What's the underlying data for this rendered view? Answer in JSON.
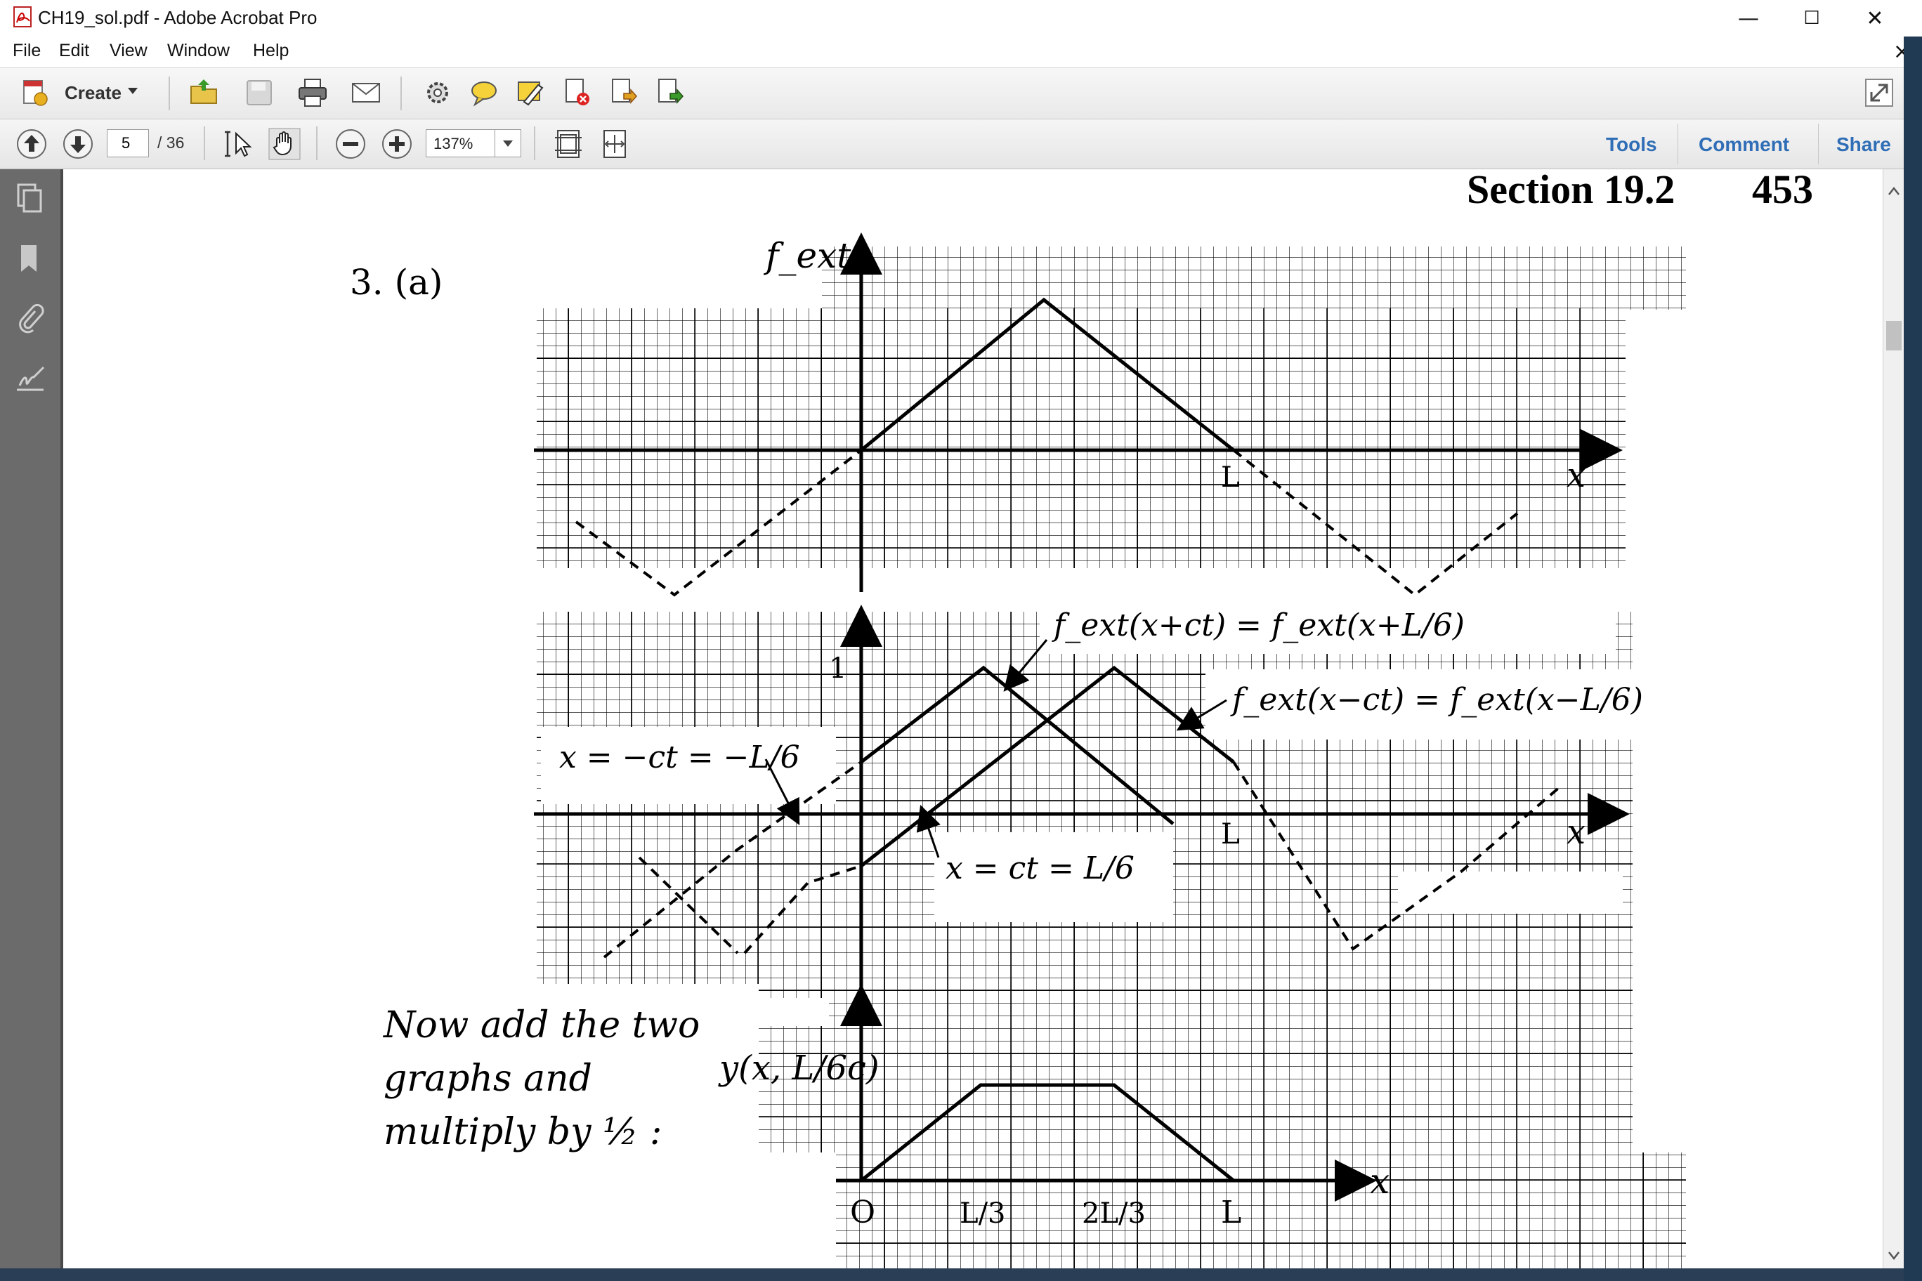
{
  "window": {
    "title": "CH19_sol.pdf - Adobe Acrobat Pro",
    "controls": {
      "minimize": "—",
      "maximize": "☐",
      "close": "✕"
    }
  },
  "menu": {
    "items": [
      "File",
      "Edit",
      "View",
      "Window",
      "Help"
    ],
    "close_glyph": "×"
  },
  "toolbar": {
    "create_label": "Create",
    "page_current": "5",
    "page_total": "/ 36",
    "zoom": "137%",
    "panes": [
      "Tools",
      "Comment",
      "Share"
    ]
  },
  "document": {
    "header": {
      "section": "Section 19.2",
      "page_number": "453"
    },
    "problem_label": "3. (a)",
    "graph1": {
      "ylabel": "f_ext",
      "xlabel": "x",
      "tick_L": "L"
    },
    "graph2": {
      "label_left_wave": "f_ext(x+ct) = f_ext(x+L/6)",
      "label_right_wave": "f_ext(x−ct) = f_ext(x−L/6)",
      "label_neg": "x = −ct = −L/6",
      "label_pos": "x = ct = L/6",
      "tick_1": "1",
      "tick_L": "L",
      "xlabel": "x"
    },
    "graph3": {
      "ylabel": "y(x, L/6c)",
      "xlabel": "x",
      "ticks": [
        "O",
        "L/3",
        "2L/3",
        "L"
      ]
    },
    "note_lines": [
      "Now add the two",
      "graphs and",
      "multiply by ½ :"
    ]
  }
}
